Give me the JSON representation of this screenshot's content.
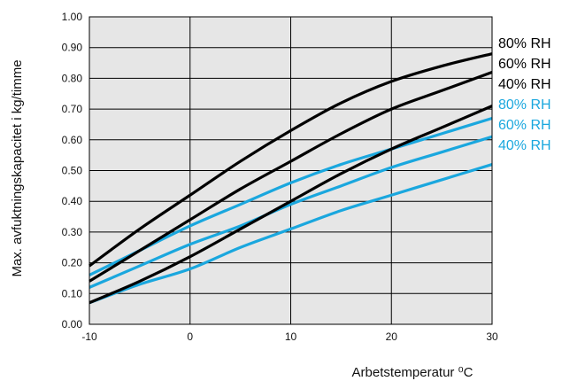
{
  "chart_data": {
    "type": "line",
    "xlabel": "Arbetstemperatur ⁰C",
    "ylabel": "Max. avfuktningskapacitet i kg/timme",
    "xlim": [
      -10,
      30
    ],
    "ylim": [
      0,
      1
    ],
    "x_ticks": [
      -10,
      0,
      10,
      20,
      30
    ],
    "y_ticks": [
      "0.00",
      "0.10",
      "0.20",
      "0.30",
      "0.40",
      "0.50",
      "0.60",
      "0.70",
      "0.80",
      "0.90",
      "1.00"
    ],
    "grid": true,
    "plot_background": "#e6e6e6",
    "legend_placement": "right",
    "series": [
      {
        "name": "80% RH",
        "color": "#000000",
        "x": [
          -10,
          -5,
          0,
          5,
          10,
          15,
          20,
          25,
          30
        ],
        "y": [
          0.19,
          0.31,
          0.42,
          0.53,
          0.63,
          0.72,
          0.79,
          0.84,
          0.88
        ]
      },
      {
        "name": "60% RH",
        "color": "#000000",
        "x": [
          -10,
          -5,
          0,
          5,
          10,
          15,
          20,
          25,
          30
        ],
        "y": [
          0.14,
          0.24,
          0.34,
          0.44,
          0.53,
          0.62,
          0.7,
          0.76,
          0.82
        ]
      },
      {
        "name": "40% RH",
        "color": "#000000",
        "x": [
          -10,
          -5,
          0,
          5,
          10,
          15,
          20,
          25,
          30
        ],
        "y": [
          0.07,
          0.14,
          0.22,
          0.31,
          0.4,
          0.49,
          0.57,
          0.64,
          0.71
        ]
      },
      {
        "name": "80% RH",
        "color": "#1aa7de",
        "x": [
          -10,
          -5,
          0,
          5,
          10,
          15,
          20,
          25,
          30
        ],
        "y": [
          0.16,
          0.24,
          0.32,
          0.39,
          0.46,
          0.52,
          0.57,
          0.62,
          0.67
        ]
      },
      {
        "name": "60% RH",
        "color": "#1aa7de",
        "x": [
          -10,
          -5,
          0,
          5,
          10,
          15,
          20,
          25,
          30
        ],
        "y": [
          0.12,
          0.19,
          0.26,
          0.32,
          0.39,
          0.45,
          0.51,
          0.56,
          0.61
        ]
      },
      {
        "name": "40% RH",
        "color": "#1aa7de",
        "x": [
          -10,
          -5,
          0,
          5,
          10,
          15,
          20,
          25,
          30
        ],
        "y": [
          0.07,
          0.13,
          0.18,
          0.25,
          0.31,
          0.37,
          0.42,
          0.47,
          0.52
        ]
      }
    ]
  }
}
